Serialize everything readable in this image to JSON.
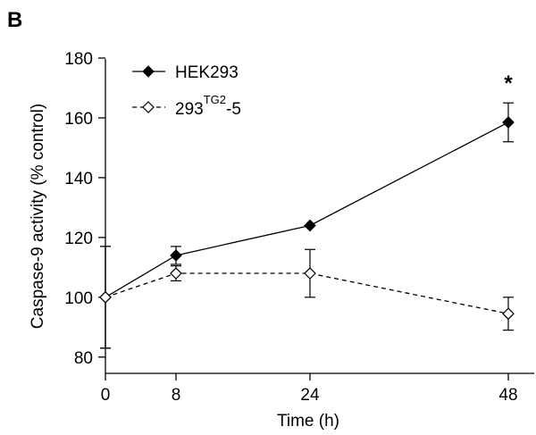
{
  "panel_label": "B",
  "chart_data": {
    "type": "line",
    "x": [
      0,
      8,
      24,
      48
    ],
    "xlabel": "Time (h)",
    "ylabel": "Caspase-9 activity (% control)",
    "ylim": [
      75,
      180
    ],
    "yticks": [
      80,
      100,
      120,
      140,
      160,
      180
    ],
    "xticks": [
      0,
      8,
      24,
      48
    ],
    "grid": false,
    "legend_position": "top-left",
    "series": [
      {
        "name": "HEK293",
        "name_base": "HEK293",
        "marker": "filled-diamond",
        "line": "solid",
        "color": "#000000",
        "values": [
          100,
          114,
          124,
          158.5
        ],
        "errors": [
          17,
          3,
          null,
          6.5
        ]
      },
      {
        "name": "293TG2-5",
        "name_base": "293",
        "name_sup": "TG2",
        "name_suffix": "-5",
        "marker": "open-diamond",
        "line": "dashed",
        "color": "#000000",
        "values": [
          100,
          108,
          108,
          94.5
        ],
        "errors": [
          17,
          2.5,
          8,
          5.5
        ]
      }
    ],
    "annotations": [
      {
        "text": "*",
        "x": 48,
        "series": 0
      }
    ]
  }
}
